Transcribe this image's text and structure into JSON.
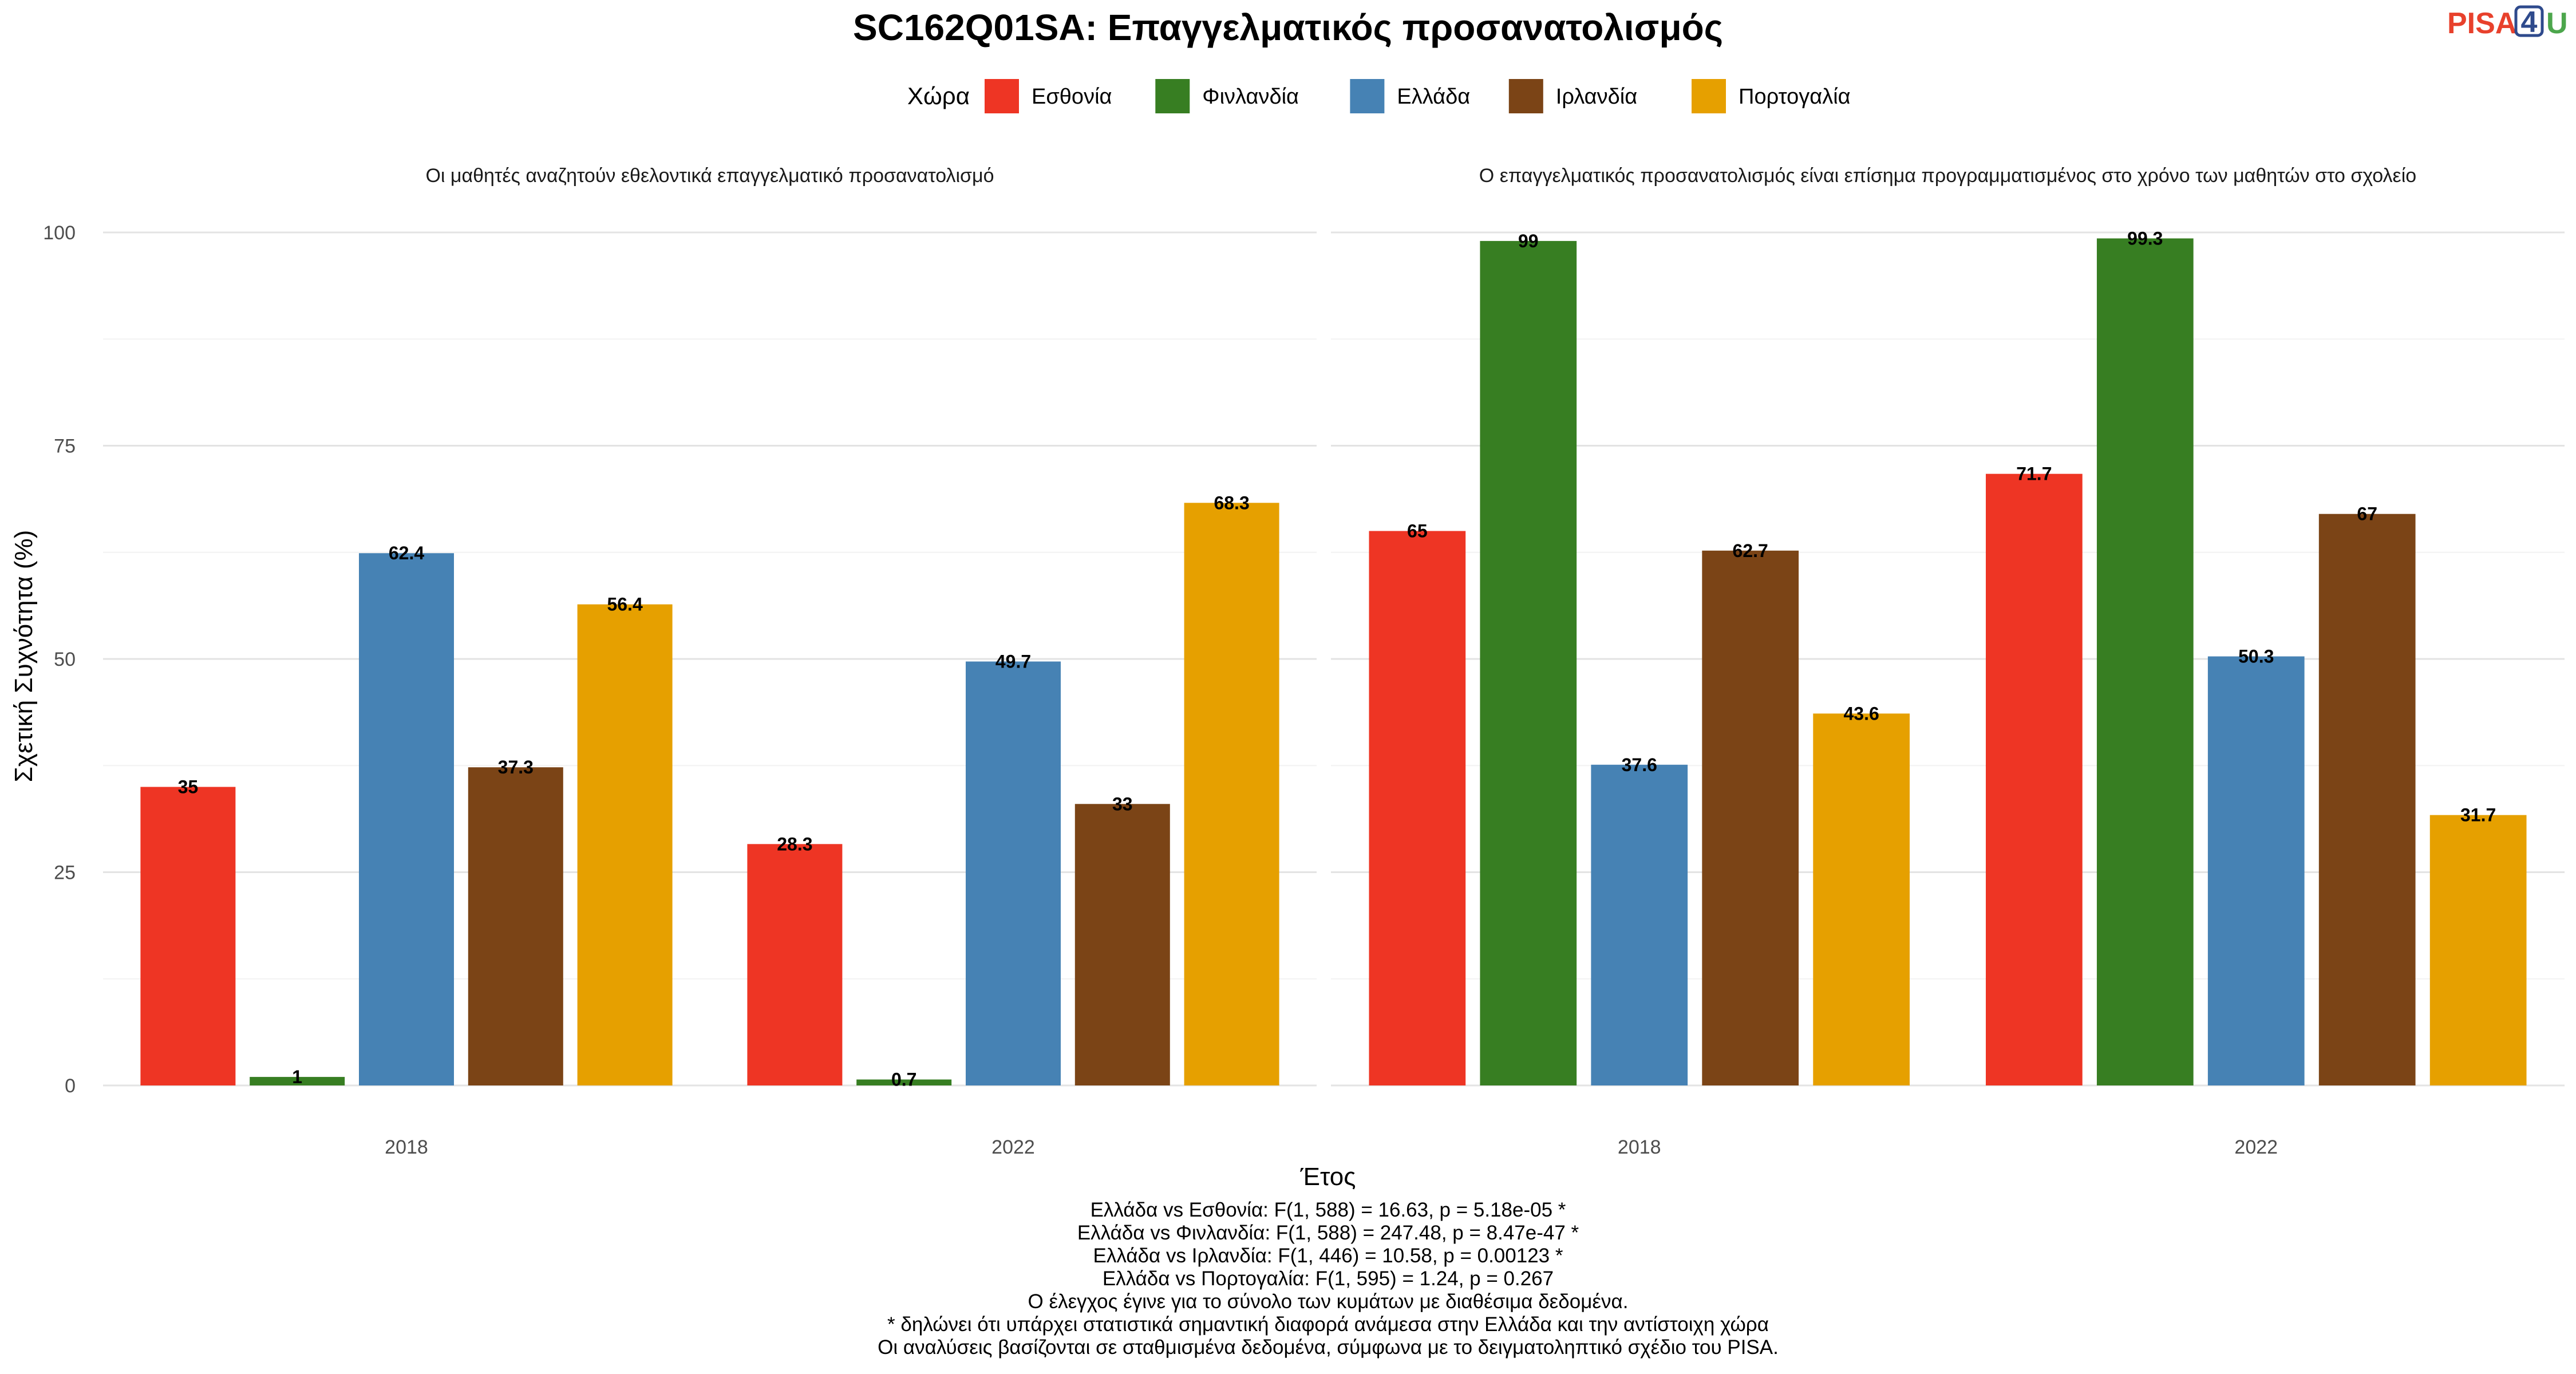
{
  "logo": {
    "text_left": "PISA",
    "digit": "4",
    "text_right": "U"
  },
  "chart_data": {
    "type": "bar",
    "title": "SC162Q01SA: Επαγγελματικός προσανατολισμός",
    "xlabel": "Έτος",
    "ylabel": "Σχετική Συχνότητα (%)",
    "ylim": [
      0,
      100
    ],
    "yticks": [
      0,
      25,
      50,
      75,
      100
    ],
    "grid": true,
    "legend": {
      "title": "Χώρα",
      "placement": "top",
      "entries": [
        {
          "name": "Εσθονία",
          "color": "#EE3524"
        },
        {
          "name": "Φινλανδία",
          "color": "#377E22"
        },
        {
          "name": "Ελλάδα",
          "color": "#4682B4"
        },
        {
          "name": "Ιρλανδία",
          "color": "#7B4416"
        },
        {
          "name": "Πορτογαλία",
          "color": "#E6A000"
        }
      ]
    },
    "categories": [
      "2018",
      "2022"
    ],
    "facets": [
      {
        "title": "Οι μαθητές αναζητούν εθελοντικά επαγγελματικό προσανατολισμό",
        "series": [
          {
            "name": "Εσθονία",
            "values": [
              35,
              28.3
            ]
          },
          {
            "name": "Φινλανδία",
            "values": [
              1,
              0.7
            ]
          },
          {
            "name": "Ελλάδα",
            "values": [
              62.4,
              49.7
            ]
          },
          {
            "name": "Ιρλανδία",
            "values": [
              37.3,
              33
            ]
          },
          {
            "name": "Πορτογαλία",
            "values": [
              56.4,
              68.3
            ]
          }
        ]
      },
      {
        "title": "Ο επαγγελματικός προσανατολισμός είναι επίσημα προγραμματισμένος στο χρόνο των μαθητών στο σχολείο",
        "series": [
          {
            "name": "Εσθονία",
            "values": [
              65,
              71.7
            ]
          },
          {
            "name": "Φινλανδία",
            "values": [
              99,
              99.3
            ]
          },
          {
            "name": "Ελλάδα",
            "values": [
              37.6,
              50.3
            ]
          },
          {
            "name": "Ιρλανδία",
            "values": [
              62.7,
              67
            ]
          },
          {
            "name": "Πορτογαλία",
            "values": [
              43.6,
              31.7
            ]
          }
        ]
      }
    ],
    "footnotes": [
      "Ελλάδα vs Εσθονία: F(1, 588) = 16.63, p = 5.18e-05 *",
      "Ελλάδα vs Φινλανδία: F(1, 588) = 247.48, p = 8.47e-47 *",
      "Ελλάδα vs Ιρλανδία: F(1, 446) = 10.58, p = 0.00123 *",
      "Ελλάδα vs Πορτογαλία: F(1, 595) = 1.24, p = 0.267",
      "Ο έλεγχος έγινε για το σύνολο των κυμάτων με διαθέσιμα δεδομένα.",
      "* δηλώνει ότι υπάρχει στατιστικά σημαντική διαφορά ανάμεσα στην Ελλάδα και την αντίστοιχη χώρα",
      "Οι αναλύσεις βασίζονται σε σταθμισμένα δεδομένα, σύμφωνα με το δειγματοληπτικό σχέδιο του PISA."
    ]
  }
}
